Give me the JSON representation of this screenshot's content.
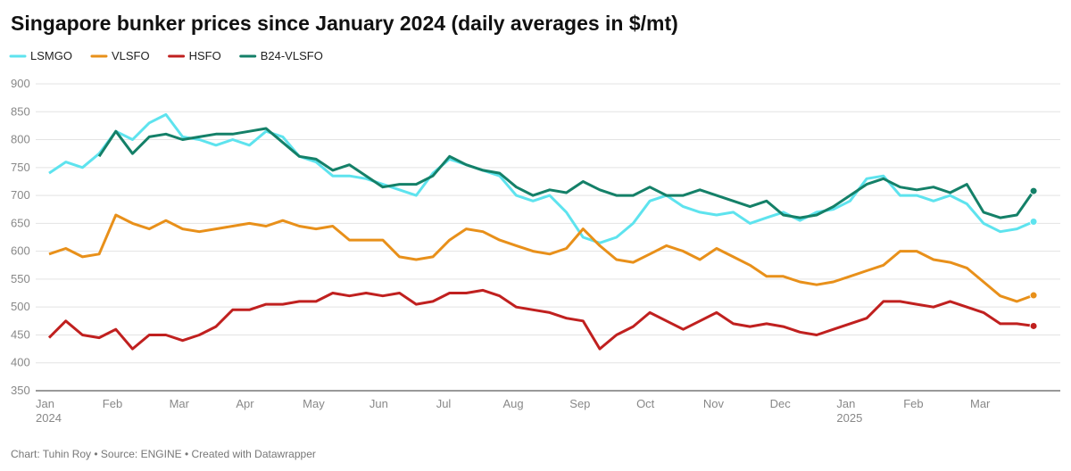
{
  "chart_data": {
    "type": "line",
    "title": "Singapore bunker prices since January 2024 (daily averages in $/mt)",
    "footer": "Chart: Tuhin Roy • Source: ENGINE • Created with Datawrapper",
    "categories": [
      "Jan 2024",
      null,
      null,
      null,
      "Feb",
      null,
      null,
      null,
      "Mar",
      null,
      null,
      null,
      "Apr",
      null,
      null,
      null,
      "May",
      null,
      null,
      null,
      "Jun",
      null,
      null,
      null,
      "Jul",
      null,
      null,
      null,
      "Aug",
      null,
      null,
      null,
      "Sep",
      null,
      null,
      null,
      "Oct",
      null,
      null,
      null,
      "Nov",
      null,
      null,
      null,
      "Dec",
      null,
      null,
      null,
      "Jan 2025",
      null,
      null,
      null,
      "Feb",
      null,
      null,
      null,
      "Mar",
      null,
      null,
      null
    ],
    "series": [
      {
        "name": "LSMGO",
        "color": "#5ee3ee",
        "values": [
          740,
          760,
          750,
          775,
          815,
          800,
          830,
          845,
          805,
          800,
          790,
          800,
          790,
          815,
          805,
          770,
          760,
          735,
          735,
          730,
          720,
          710,
          700,
          740,
          765,
          755,
          745,
          735,
          700,
          690,
          700,
          670,
          625,
          615,
          625,
          650,
          690,
          700,
          680,
          670,
          665,
          670,
          650,
          660,
          670,
          655,
          670,
          675,
          690,
          730,
          735,
          700,
          700,
          690,
          700,
          685,
          650,
          635,
          640,
          653
        ]
      },
      {
        "name": "VLSFO",
        "color": "#e8901a",
        "values": [
          595,
          605,
          590,
          595,
          665,
          650,
          640,
          655,
          640,
          635,
          640,
          645,
          650,
          645,
          655,
          645,
          640,
          645,
          620,
          620,
          620,
          590,
          585,
          590,
          620,
          640,
          635,
          620,
          610,
          600,
          595,
          605,
          640,
          610,
          585,
          580,
          595,
          610,
          600,
          585,
          605,
          590,
          575,
          555,
          555,
          545,
          540,
          545,
          555,
          565,
          575,
          600,
          600,
          585,
          580,
          570,
          545,
          520,
          510,
          521
        ]
      },
      {
        "name": "HSFO",
        "color": "#c0201f",
        "values": [
          445,
          475,
          450,
          445,
          460,
          425,
          450,
          450,
          440,
          450,
          465,
          495,
          495,
          505,
          505,
          510,
          510,
          525,
          520,
          525,
          520,
          525,
          505,
          510,
          525,
          525,
          530,
          520,
          500,
          495,
          490,
          480,
          475,
          425,
          450,
          465,
          490,
          475,
          460,
          475,
          490,
          470,
          465,
          470,
          465,
          455,
          450,
          460,
          470,
          480,
          510,
          510,
          505,
          500,
          510,
          500,
          490,
          470,
          470,
          466
        ]
      },
      {
        "name": "B24-VLSFO",
        "color": "#148068",
        "values": [
          null,
          null,
          null,
          770,
          815,
          775,
          805,
          810,
          800,
          805,
          810,
          810,
          815,
          820,
          795,
          770,
          765,
          745,
          755,
          735,
          715,
          720,
          720,
          735,
          770,
          755,
          745,
          740,
          715,
          700,
          710,
          705,
          725,
          710,
          700,
          700,
          715,
          700,
          700,
          710,
          700,
          690,
          680,
          690,
          665,
          660,
          665,
          680,
          700,
          720,
          730,
          715,
          710,
          715,
          705,
          720,
          670,
          660,
          665,
          708
        ]
      }
    ],
    "ylim": [
      350,
      900
    ],
    "yticks": [
      350,
      400,
      450,
      500,
      550,
      600,
      650,
      700,
      750,
      800,
      850,
      900
    ],
    "grid": true
  }
}
